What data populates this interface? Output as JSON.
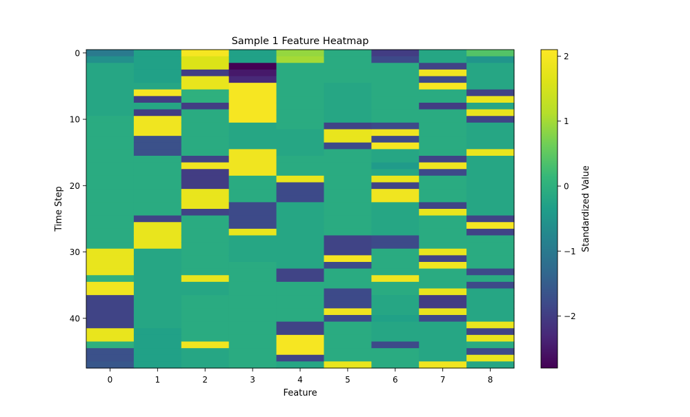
{
  "chart_data": {
    "type": "heatmap",
    "title": "Sample 1 Feature Heatmap",
    "xlabel": "Feature",
    "ylabel": "Time Step",
    "x_categories": [
      "0",
      "1",
      "2",
      "3",
      "4",
      "5",
      "6",
      "7",
      "8"
    ],
    "y_range": [
      0,
      47
    ],
    "y_ticks": [
      "0",
      "10",
      "20",
      "30",
      "40"
    ],
    "colorbar": {
      "label": "Standardized Value",
      "vmin": -2.8,
      "vmax": 2.1,
      "ticks": [
        "2",
        "1",
        "0",
        "−1",
        "−2"
      ],
      "colormap": "viridis"
    },
    "columns": [
      [
        -1.0,
        -0.6,
        -0.2,
        -0.2,
        -0.2,
        -0.2,
        -0.2,
        -0.2,
        -0.2,
        -0.2,
        -0.1,
        -0.1,
        -0.1,
        -0.1,
        -0.1,
        -0.1,
        -0.1,
        -0.1,
        -0.1,
        -0.1,
        -0.1,
        -0.1,
        -0.1,
        -0.1,
        -0.1,
        -0.1,
        -0.1,
        -0.1,
        -0.1,
        -0.1,
        1.8,
        1.8,
        1.8,
        1.8,
        0.0,
        1.9,
        1.9,
        -1.9,
        -1.9,
        -1.9,
        -1.9,
        -1.9,
        1.8,
        1.8,
        0.0,
        -1.7,
        -1.7,
        -1.6
      ],
      [
        -0.3,
        -0.3,
        -0.3,
        -0.3,
        -0.3,
        -0.2,
        2.0,
        -2.0,
        -0.2,
        -2.0,
        1.9,
        1.9,
        1.9,
        -1.7,
        -1.7,
        -1.7,
        -0.1,
        -0.1,
        -0.1,
        -0.1,
        -0.1,
        -0.1,
        -0.1,
        -0.1,
        -0.1,
        -1.9,
        1.8,
        1.8,
        1.8,
        1.8,
        -0.2,
        -0.2,
        -0.2,
        -0.2,
        -0.2,
        -0.2,
        -0.2,
        -0.2,
        -0.2,
        -0.2,
        -0.2,
        -0.2,
        -0.3,
        -0.3,
        -0.3,
        -0.3,
        -0.3,
        -0.3
      ],
      [
        2.0,
        1.6,
        1.6,
        -2.0,
        1.8,
        1.8,
        0.0,
        0.0,
        -2.0,
        -0.1,
        -0.1,
        -0.1,
        -0.1,
        -0.1,
        -0.1,
        -0.1,
        -1.9,
        1.9,
        -2.0,
        -2.0,
        -2.0,
        1.8,
        1.8,
        1.8,
        -1.9,
        -0.1,
        -0.1,
        -0.1,
        -0.1,
        -0.1,
        -0.1,
        -0.1,
        -0.1,
        -0.1,
        1.8,
        -0.2,
        -0.2,
        -0.1,
        -0.1,
        -0.1,
        -0.1,
        -0.1,
        -0.1,
        -0.1,
        1.9,
        -0.2,
        -0.2,
        -0.2
      ],
      [
        -0.3,
        -0.3,
        -2.8,
        -2.5,
        -2.3,
        2.0,
        2.0,
        2.0,
        2.0,
        2.0,
        2.0,
        -0.2,
        -0.2,
        -0.2,
        -0.2,
        1.9,
        1.9,
        1.9,
        1.9,
        -0.1,
        -0.1,
        -0.1,
        -0.1,
        -1.8,
        -1.8,
        -1.8,
        -1.8,
        1.8,
        -0.2,
        -0.2,
        -0.2,
        -0.2,
        -0.1,
        -0.1,
        -0.1,
        -0.1,
        -0.1,
        -0.1,
        -0.1,
        -0.1,
        -0.1,
        -0.1,
        -0.1,
        -0.1,
        -0.1,
        -0.1,
        -0.1,
        -0.1
      ],
      [
        0.9,
        1.0,
        -0.1,
        -0.1,
        -0.1,
        -0.1,
        -0.1,
        -0.1,
        -0.1,
        -0.1,
        -0.1,
        -0.1,
        -0.2,
        -0.2,
        -0.2,
        -0.2,
        -0.1,
        -0.1,
        -0.1,
        1.8,
        -1.8,
        -1.8,
        -1.8,
        -0.2,
        -0.2,
        -0.2,
        -0.2,
        -0.2,
        -0.2,
        -0.2,
        -0.2,
        -0.2,
        -0.2,
        -1.9,
        -1.9,
        -0.1,
        -0.1,
        -0.1,
        -0.1,
        -0.1,
        -0.1,
        -1.9,
        -1.9,
        2.0,
        2.0,
        2.0,
        -1.9,
        -0.2
      ],
      [
        -0.1,
        -0.1,
        -0.1,
        -0.1,
        -0.1,
        -0.2,
        -0.2,
        -0.2,
        -0.2,
        -0.2,
        -0.2,
        -1.9,
        1.8,
        1.8,
        -1.8,
        -0.1,
        -0.1,
        -0.1,
        -0.1,
        -0.1,
        -0.1,
        -0.1,
        -0.1,
        -0.1,
        -0.1,
        -0.1,
        -0.1,
        -0.1,
        -1.9,
        -1.9,
        -1.9,
        2.0,
        -1.8,
        -0.1,
        -0.1,
        -0.1,
        -1.8,
        -1.8,
        -1.8,
        1.9,
        -1.8,
        -0.1,
        -0.1,
        -0.1,
        -0.1,
        -0.1,
        -0.1,
        1.8
      ],
      [
        -2.0,
        -1.8,
        -0.1,
        -0.1,
        -0.1,
        -0.1,
        -0.1,
        -0.1,
        -0.1,
        -0.1,
        -0.1,
        -1.8,
        1.9,
        -1.8,
        2.0,
        -0.2,
        -0.2,
        -0.4,
        -0.2,
        1.8,
        -1.9,
        1.9,
        1.9,
        -0.2,
        -0.2,
        -0.2,
        -0.2,
        -0.2,
        -1.8,
        -1.8,
        -0.1,
        -0.1,
        -0.1,
        -0.1,
        1.9,
        -0.1,
        -0.1,
        -0.2,
        -0.2,
        -0.2,
        -0.3,
        -0.2,
        -0.2,
        -0.2,
        -1.8,
        -0.1,
        -0.1,
        -0.1
      ],
      [
        -0.2,
        -0.2,
        -1.9,
        1.9,
        -1.8,
        2.0,
        -0.1,
        -0.1,
        -2.0,
        -0.1,
        -0.1,
        -0.1,
        -0.1,
        -0.1,
        -0.1,
        -0.1,
        -1.9,
        1.9,
        -1.8,
        -0.1,
        -0.1,
        -0.1,
        -0.1,
        -1.9,
        1.8,
        -0.1,
        -0.1,
        -0.1,
        -0.1,
        -0.1,
        1.8,
        -1.9,
        1.9,
        -0.1,
        -0.1,
        -0.1,
        1.8,
        -2.0,
        -2.0,
        1.8,
        -1.8,
        -0.2,
        -0.2,
        -0.2,
        -0.2,
        -0.2,
        -0.2,
        1.9
      ],
      [
        0.4,
        -0.5,
        -0.2,
        -0.2,
        -0.2,
        -0.2,
        -1.9,
        1.8,
        -0.2,
        1.8,
        -1.9,
        -0.2,
        -0.2,
        -0.2,
        -0.2,
        1.8,
        -0.2,
        -0.2,
        -0.2,
        -0.2,
        -0.2,
        -0.2,
        -0.2,
        -0.2,
        -0.2,
        -1.9,
        2.0,
        -1.9,
        -0.1,
        -0.1,
        -0.1,
        -0.1,
        -0.1,
        -1.8,
        -0.1,
        -1.8,
        -0.2,
        -0.2,
        -0.2,
        -0.2,
        -0.2,
        1.8,
        -1.9,
        1.8,
        -0.1,
        -1.8,
        1.8,
        -0.2
      ]
    ]
  }
}
